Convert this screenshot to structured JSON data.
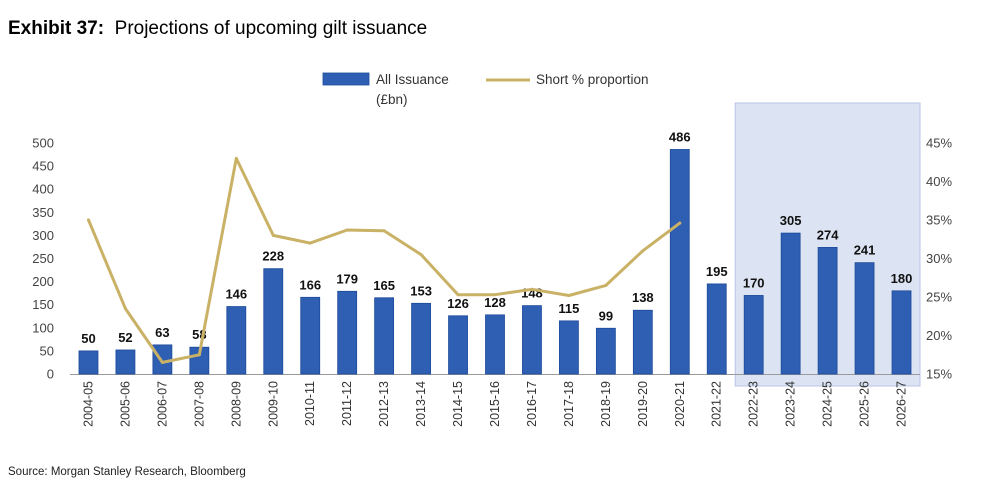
{
  "header": {
    "exhibit": "Exhibit 37:",
    "title": "Projections of upcoming gilt issuance"
  },
  "footer": {
    "source": "Source: Morgan Stanley Research, Bloomberg"
  },
  "colors": {
    "bar": "#2f5fb3",
    "bar_edge": "#1d4a9a",
    "line": "#c9b166",
    "highlight": "#dce3f3",
    "highlight_edge": "#b9c6e6"
  },
  "chart_data": {
    "type": "bar",
    "title": "Projections of upcoming gilt issuance",
    "categories": [
      "2004-05",
      "2005-06",
      "2006-07",
      "2007-08",
      "2008-09",
      "2009-10",
      "2010-11",
      "2011-12",
      "2012-13",
      "2013-14",
      "2014-15",
      "2015-16",
      "2016-17",
      "2017-18",
      "2018-19",
      "2019-20",
      "2020-21",
      "2021-22",
      "2022-23",
      "2023-24",
      "2024-25",
      "2025-26",
      "2026-27"
    ],
    "series": [
      {
        "name": "All Issuance (£bn)",
        "type": "bar",
        "axis": "left",
        "values": [
          50,
          52,
          63,
          58,
          146,
          228,
          166,
          179,
          165,
          153,
          126,
          128,
          148,
          115,
          99,
          138,
          486,
          195,
          170,
          305,
          274,
          241,
          180
        ]
      },
      {
        "name": "Short % proportion",
        "type": "line",
        "axis": "right",
        "values": [
          35,
          23.5,
          16.5,
          17.5,
          43,
          33,
          32,
          33.7,
          33.6,
          30.5,
          25.3,
          25.3,
          26,
          25.2,
          26.5,
          31,
          34.6,
          null,
          null,
          null,
          null,
          null,
          null
        ]
      }
    ],
    "left_axis": {
      "ylim": [
        0,
        500
      ],
      "ticks": [
        "0",
        "50",
        "100",
        "150",
        "200",
        "250",
        "300",
        "350",
        "400",
        "450",
        "500"
      ]
    },
    "right_axis": {
      "ylim": [
        15,
        45
      ],
      "ticks": [
        "15%",
        "20%",
        "25%",
        "30%",
        "35%",
        "40%",
        "45%"
      ]
    },
    "legend": {
      "position": "top-center",
      "bar_label_lines": [
        "All Issuance",
        "(£bn)"
      ],
      "line_label": "Short % proportion"
    },
    "highlight_range": [
      "2022-23",
      "2026-27"
    ],
    "grid": false
  }
}
